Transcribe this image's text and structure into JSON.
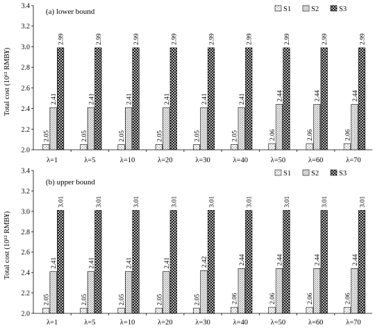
{
  "chart_data": [
    {
      "type": "bar",
      "title": "(a) lower bound",
      "ylabel": "Total cost (10¹² RMB¥)",
      "ylim": [
        2.0,
        3.4
      ],
      "yticks": [
        "2.0",
        "2.2",
        "2.4",
        "2.6",
        "2.8",
        "3.0",
        "3.2",
        "3.4"
      ],
      "categories": [
        "λ=1",
        "λ=5",
        "λ=10",
        "λ=20",
        "λ=30",
        "λ=40",
        "λ=50",
        "λ=60",
        "λ=70"
      ],
      "legend_position": "top-right",
      "grid": false,
      "series": [
        {
          "name": "S1",
          "fill": "dotted-sparse",
          "values": [
            2.05,
            2.05,
            2.05,
            2.05,
            2.05,
            2.05,
            2.06,
            2.06,
            2.06
          ],
          "labels": [
            "2.05",
            "2.05",
            "2.05",
            "2.05",
            "2.05",
            "2.05",
            "2.06",
            "2.06",
            "2.06"
          ]
        },
        {
          "name": "S2",
          "fill": "dotted",
          "values": [
            2.41,
            2.41,
            2.41,
            2.41,
            2.41,
            2.41,
            2.44,
            2.44,
            2.44
          ],
          "labels": [
            "2.41",
            "2.41",
            "2.41",
            "2.41",
            "2.41",
            "2.41",
            "2.44",
            "2.44",
            "2.44"
          ]
        },
        {
          "name": "S3",
          "fill": "crosshatch",
          "values": [
            2.99,
            2.99,
            2.99,
            2.99,
            2.99,
            2.99,
            2.99,
            2.99,
            2.99
          ],
          "labels": [
            "2.99",
            "2.99",
            "2.99",
            "2.99",
            "2.99",
            "2.99",
            "2.99",
            "2.99",
            "2.99"
          ]
        }
      ]
    },
    {
      "type": "bar",
      "title": "(b) upper bound",
      "ylabel": "Total cost (10¹² RMB¥)",
      "ylim": [
        2.0,
        3.4
      ],
      "yticks": [
        "2.0",
        "2.2",
        "2.4",
        "2.6",
        "2.8",
        "3.0",
        "3.2",
        "3.4"
      ],
      "categories": [
        "λ=1",
        "λ=5",
        "λ=10",
        "λ=20",
        "λ=30",
        "λ=40",
        "λ=50",
        "λ=60",
        "λ=70"
      ],
      "legend_position": "top-right",
      "grid": false,
      "series": [
        {
          "name": "S1",
          "fill": "dotted-sparse",
          "values": [
            2.05,
            2.05,
            2.05,
            2.05,
            2.05,
            2.06,
            2.06,
            2.06,
            2.06
          ],
          "labels": [
            "2.05",
            "2.05",
            "2.05",
            "2.05",
            "2.05",
            "2.06",
            "2.06",
            "2.06",
            "2.06"
          ]
        },
        {
          "name": "S2",
          "fill": "dotted",
          "values": [
            2.41,
            2.41,
            2.41,
            2.41,
            2.42,
            2.44,
            2.44,
            2.44,
            2.44
          ],
          "labels": [
            "2.41",
            "2.41",
            "2.41",
            "2.41",
            "2.42",
            "2.44",
            "2.44",
            "2.44",
            "2.44"
          ]
        },
        {
          "name": "S3",
          "fill": "crosshatch",
          "values": [
            3.01,
            3.01,
            3.01,
            3.01,
            3.01,
            3.01,
            3.01,
            3.01,
            3.01
          ],
          "labels": [
            "3.01",
            "3.01",
            "3.01",
            "3.01",
            "3.01",
            "3.01",
            "3.01",
            "3.01",
            "3.01"
          ]
        }
      ]
    }
  ]
}
